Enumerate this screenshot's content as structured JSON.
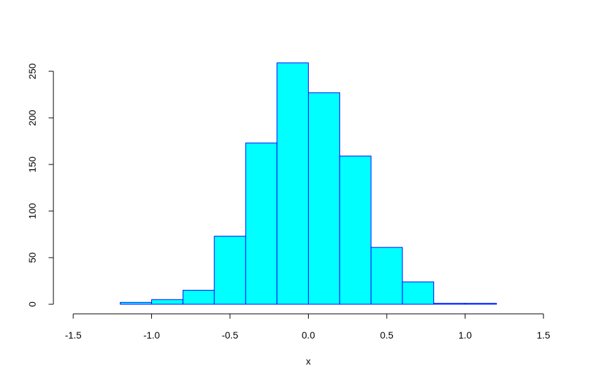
{
  "chart_data": {
    "type": "bar",
    "title": "",
    "xlabel": "x",
    "ylabel": "",
    "xlim": [
      -1.5,
      1.5
    ],
    "ylim": [
      0,
      250
    ],
    "x_ticks": [
      -1.5,
      -1.0,
      -0.5,
      0.0,
      0.5,
      1.0,
      1.5
    ],
    "x_tick_labels": [
      "-1.5",
      "-1.0",
      "-0.5",
      "0.0",
      "0.5",
      "1.0",
      "1.5"
    ],
    "y_ticks": [
      0,
      50,
      100,
      150,
      200,
      250
    ],
    "y_tick_labels": [
      "0",
      "50",
      "100",
      "150",
      "200",
      "250"
    ],
    "bin_edges": [
      -1.2,
      -1.0,
      -0.8,
      -0.6,
      -0.4,
      -0.2,
      0.0,
      0.2,
      0.4,
      0.6,
      0.8,
      1.0,
      1.2
    ],
    "values": [
      2,
      5,
      15,
      73,
      173,
      259,
      227,
      159,
      61,
      24,
      1,
      1
    ],
    "grid": false,
    "colors": {
      "fill": "#00FFFF",
      "border": "#0000FF",
      "axis": "#000000"
    }
  }
}
